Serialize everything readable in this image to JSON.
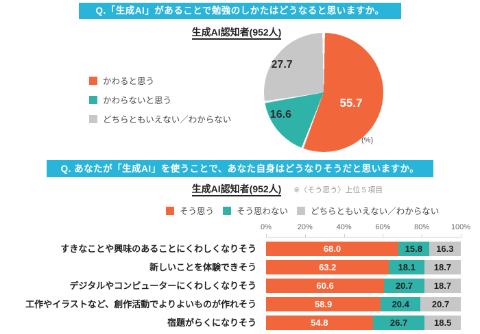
{
  "colors": {
    "banner_bg": "#29B4D9",
    "orange": "#F2663B",
    "teal": "#2FB3A9",
    "gray": "#C7C7C7",
    "white": "#FFFFFF",
    "dark_text": "#222222"
  },
  "question1": {
    "banner": "Q.「生成AI」があることで勉強のしかたはどうなると思いますか。",
    "subtitle": "生成AI認知者(952人)"
  },
  "question2": {
    "banner": "Q. あなたが「生成AI」を使うことで、あなた自身はどうなりそうだと思いますか。",
    "subtitle": "生成AI認知者(952人)",
    "note": "※〈そう思う〉上位５項目"
  },
  "chart_data": [
    {
      "type": "pie",
      "title": "生成AI認知者(952人)",
      "unit_label": "(%)",
      "start_angle": "top",
      "direction": "clockwise",
      "slices": [
        {
          "label": "かわると思う",
          "value": 55.7,
          "color": "#F2663B",
          "label_color": "#FFFFFF"
        },
        {
          "label": "かわらないと思う",
          "value": 16.6,
          "color": "#2FB3A9",
          "label_color": "#2b2b2b"
        },
        {
          "label": "どちらともいえない／わからない",
          "value": 27.7,
          "color": "#C7C7C7",
          "label_color": "#2b2b2b"
        }
      ]
    },
    {
      "type": "bar",
      "orientation": "horizontal-stacked",
      "title": "生成AI認知者(952人)",
      "note": "※〈そう思う〉上位５項目",
      "xlim": [
        0,
        100
      ],
      "x_ticks": [
        "0%",
        "20%",
        "40%",
        "60%",
        "80%",
        "100%"
      ],
      "legend_position": "top",
      "categories": [
        "すきなことや興味のあることにくわしくなりそう",
        "新しいことを体験できそう",
        "デジタルやコンピューターにくわしくなりそう",
        "工作やイラストなど、創作活動でよりよいものが作れそう",
        "宿題がらくになりそう"
      ],
      "series": [
        {
          "name": "そう思う",
          "color": "#F2663B",
          "label_color": "#FFFFFF",
          "values": [
            68.0,
            63.2,
            60.6,
            58.9,
            54.8
          ]
        },
        {
          "name": "そう思わない",
          "color": "#2FB3A9",
          "label_color": "#222222",
          "values": [
            15.8,
            18.1,
            20.7,
            20.4,
            26.7
          ]
        },
        {
          "name": "どちらともいえない／わからない",
          "color": "#C7C7C7",
          "label_color": "#222222",
          "values": [
            16.3,
            18.7,
            18.7,
            20.7,
            18.5
          ]
        }
      ]
    }
  ]
}
